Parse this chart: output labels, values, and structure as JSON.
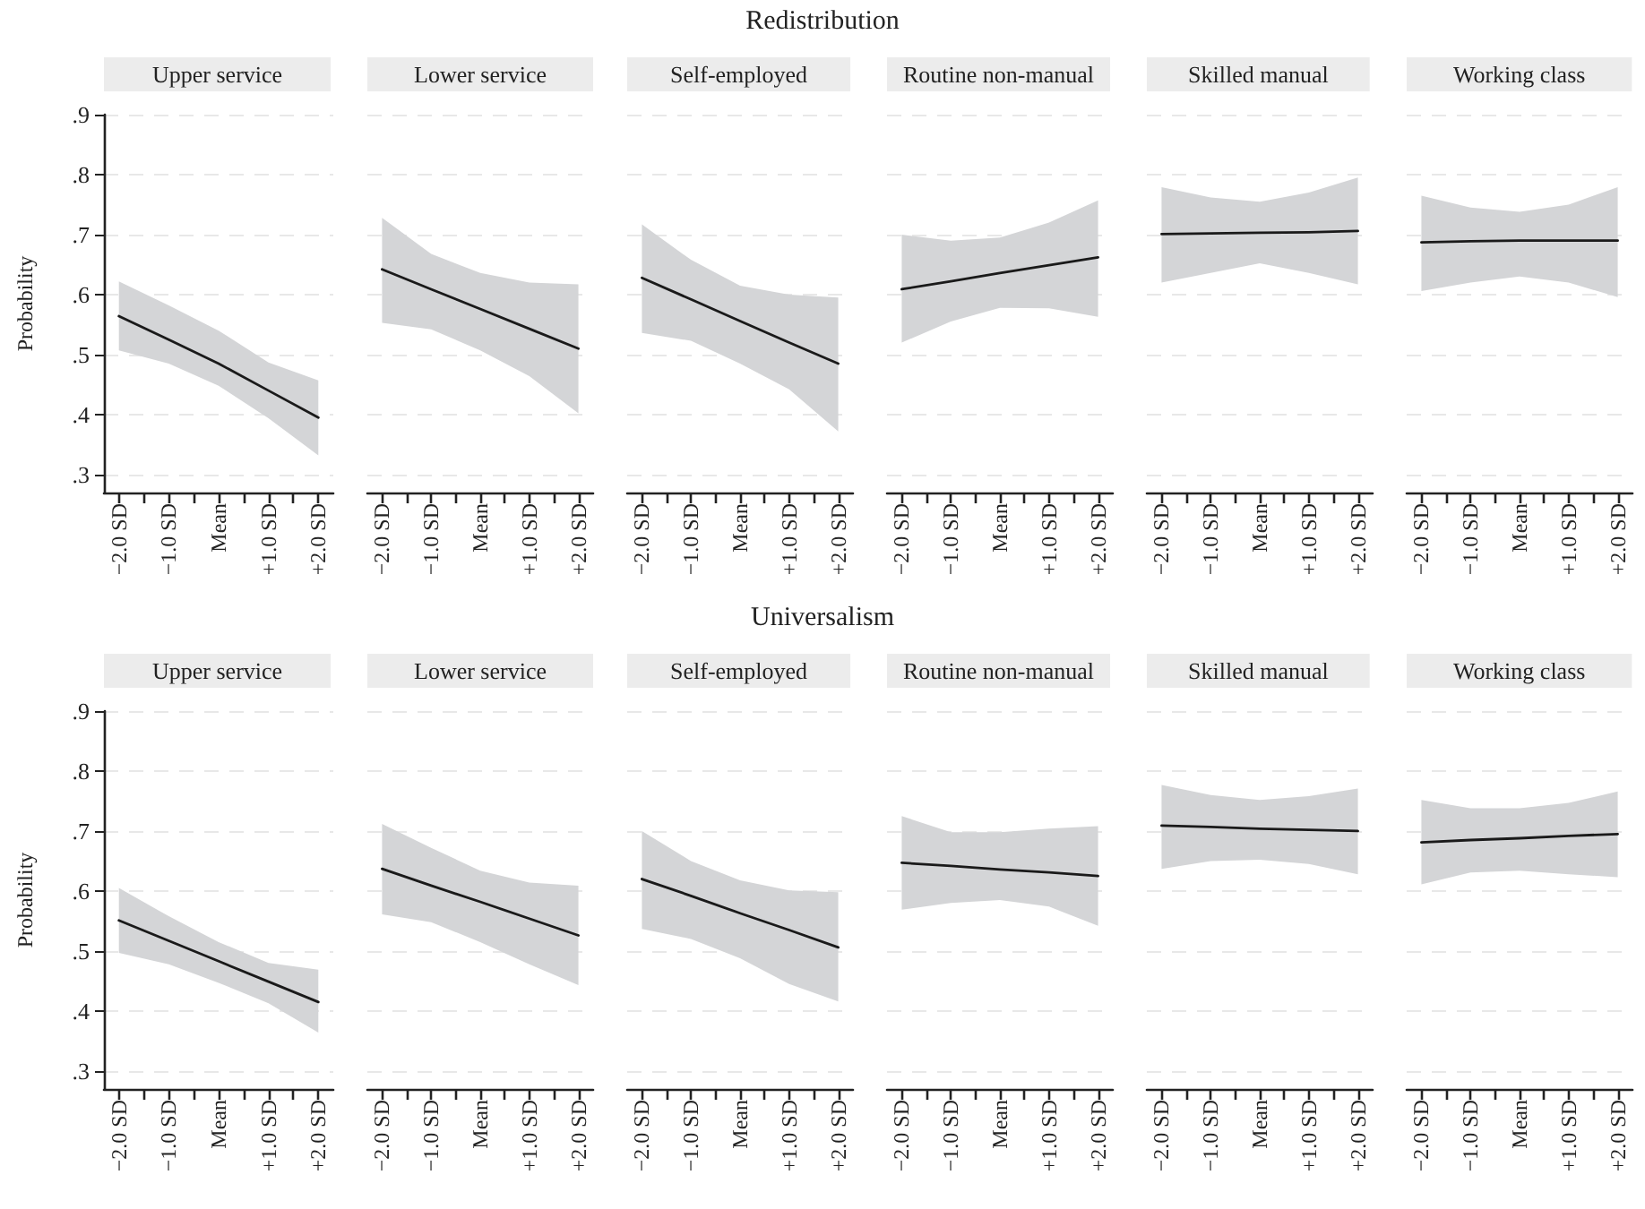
{
  "chart_data": [
    {
      "type": "other",
      "title": "Redistribution"
    },
    {
      "type": "line",
      "title": "Upper service",
      "ylabel": "Probability",
      "x": [
        -2,
        -1,
        0,
        1,
        2
      ],
      "xlim": [
        -2.3,
        2.3
      ],
      "xticks": [
        {
          "value": -2,
          "label": "−2.0 SD"
        },
        {
          "value": -1.5,
          "label": null
        },
        {
          "value": -1,
          "label": "−1.0 SD"
        },
        {
          "value": -0.5,
          "label": null
        },
        {
          "value": 0,
          "label": "Mean"
        },
        {
          "value": 0.5,
          "label": null
        },
        {
          "value": 1,
          "label": "+1.0 SD"
        },
        {
          "value": 1.5,
          "label": null
        },
        {
          "value": 2,
          "label": "+2.0 SD"
        }
      ],
      "ylim": [
        0.27,
        0.9
      ],
      "yticks": [
        {
          "value": 0.3,
          "label": ".3"
        },
        {
          "value": 0.4,
          "label": ".4"
        },
        {
          "value": 0.5,
          "label": ".5"
        },
        {
          "value": 0.6,
          "label": ".6"
        },
        {
          "value": 0.7,
          "label": ".7"
        },
        {
          "value": 0.8,
          "label": ".8"
        },
        {
          "value": 0.9,
          "label": ".9"
        }
      ],
      "grid": "y",
      "series": [
        {
          "color": "#1a1a1a",
          "values": [
            0.564,
            0.525,
            0.485,
            0.44,
            0.395
          ],
          "lower": [
            0.507,
            0.485,
            0.448,
            0.394,
            0.332
          ],
          "upper": [
            0.622,
            0.582,
            0.54,
            0.487,
            0.457
          ]
        }
      ]
    },
    {
      "type": "line",
      "title": "Lower service",
      "tick_labels": "x",
      "x": [
        -2,
        -1,
        0,
        1,
        2
      ],
      "xlim": [
        -2.3,
        2.3
      ],
      "xticks": [
        {
          "value": -2,
          "label": "−2.0 SD"
        },
        {
          "value": -1.5,
          "label": null
        },
        {
          "value": -1,
          "label": "−1.0 SD"
        },
        {
          "value": -0.5,
          "label": null
        },
        {
          "value": 0,
          "label": "Mean"
        },
        {
          "value": 0.5,
          "label": null
        },
        {
          "value": 1,
          "label": "+1.0 SD"
        },
        {
          "value": 1.5,
          "label": null
        },
        {
          "value": 2,
          "label": "+2.0 SD"
        }
      ],
      "ylim": [
        0.27,
        0.9
      ],
      "yticks": [
        0.3,
        0.4,
        0.5,
        0.6,
        0.7,
        0.8,
        0.9
      ],
      "grid": "y",
      "series": [
        {
          "color": "#1a1a1a",
          "values": [
            0.642,
            0.609,
            0.576,
            0.543,
            0.51
          ],
          "lower": [
            0.553,
            0.542,
            0.507,
            0.464,
            0.402
          ],
          "upper": [
            0.728,
            0.668,
            0.636,
            0.62,
            0.617
          ]
        }
      ]
    },
    {
      "type": "line",
      "title": "Self-employed",
      "tick_labels": "x",
      "x": [
        -2,
        -1,
        0,
        1,
        2
      ],
      "xlim": [
        -2.3,
        2.3
      ],
      "xticks": [
        {
          "value": -2,
          "label": "−2.0 SD"
        },
        {
          "value": -1.5,
          "label": null
        },
        {
          "value": -1,
          "label": "−1.0 SD"
        },
        {
          "value": -0.5,
          "label": null
        },
        {
          "value": 0,
          "label": "Mean"
        },
        {
          "value": 0.5,
          "label": null
        },
        {
          "value": 1,
          "label": "+1.0 SD"
        },
        {
          "value": 1.5,
          "label": null
        },
        {
          "value": 2,
          "label": "+2.0 SD"
        }
      ],
      "ylim": [
        0.27,
        0.9
      ],
      "yticks": [
        0.3,
        0.4,
        0.5,
        0.6,
        0.7,
        0.8,
        0.9
      ],
      "grid": "y",
      "series": [
        {
          "color": "#1a1a1a",
          "values": [
            0.628,
            0.592,
            0.556,
            0.52,
            0.485
          ],
          "lower": [
            0.536,
            0.523,
            0.485,
            0.442,
            0.372
          ],
          "upper": [
            0.717,
            0.658,
            0.615,
            0.6,
            0.595
          ]
        }
      ]
    },
    {
      "type": "line",
      "title": "Routine non-manual",
      "tick_labels": "x",
      "x": [
        -2,
        -1,
        0,
        1,
        2
      ],
      "xlim": [
        -2.3,
        2.3
      ],
      "xticks": [
        {
          "value": -2,
          "label": "−2.0 SD"
        },
        {
          "value": -1.5,
          "label": null
        },
        {
          "value": -1,
          "label": "−1.0 SD"
        },
        {
          "value": -0.5,
          "label": null
        },
        {
          "value": 0,
          "label": "Mean"
        },
        {
          "value": 0.5,
          "label": null
        },
        {
          "value": 1,
          "label": "+1.0 SD"
        },
        {
          "value": 1.5,
          "label": null
        },
        {
          "value": 2,
          "label": "+2.0 SD"
        }
      ],
      "ylim": [
        0.27,
        0.9
      ],
      "yticks": [
        0.3,
        0.4,
        0.5,
        0.6,
        0.7,
        0.8,
        0.9
      ],
      "grid": "y",
      "series": [
        {
          "color": "#1a1a1a",
          "values": [
            0.609,
            0.622,
            0.636,
            0.649,
            0.662
          ],
          "lower": [
            0.52,
            0.555,
            0.578,
            0.577,
            0.563
          ],
          "upper": [
            0.7,
            0.69,
            0.695,
            0.72,
            0.757
          ]
        }
      ]
    },
    {
      "type": "line",
      "title": "Skilled manual",
      "tick_labels": "x",
      "x": [
        -2,
        -1,
        0,
        1,
        2
      ],
      "xlim": [
        -2.3,
        2.3
      ],
      "xticks": [
        {
          "value": -2,
          "label": "−2.0 SD"
        },
        {
          "value": -1.5,
          "label": null
        },
        {
          "value": -1,
          "label": "−1.0 SD"
        },
        {
          "value": -0.5,
          "label": null
        },
        {
          "value": 0,
          "label": "Mean"
        },
        {
          "value": 0.5,
          "label": null
        },
        {
          "value": 1,
          "label": "+1.0 SD"
        },
        {
          "value": 1.5,
          "label": null
        },
        {
          "value": 2,
          "label": "+2.0 SD"
        }
      ],
      "ylim": [
        0.27,
        0.9
      ],
      "yticks": [
        0.3,
        0.4,
        0.5,
        0.6,
        0.7,
        0.8,
        0.9
      ],
      "grid": "y",
      "series": [
        {
          "color": "#1a1a1a",
          "values": [
            0.701,
            0.702,
            0.703,
            0.704,
            0.706
          ],
          "lower": [
            0.62,
            0.636,
            0.652,
            0.636,
            0.617
          ],
          "upper": [
            0.779,
            0.762,
            0.755,
            0.77,
            0.795
          ]
        }
      ]
    },
    {
      "type": "line",
      "title": "Working class",
      "tick_labels": "x",
      "x": [
        -2,
        -1,
        0,
        1,
        2
      ],
      "xlim": [
        -2.3,
        2.3
      ],
      "xticks": [
        {
          "value": -2,
          "label": "−2.0 SD"
        },
        {
          "value": -1.5,
          "label": null
        },
        {
          "value": -1,
          "label": "−1.0 SD"
        },
        {
          "value": -0.5,
          "label": null
        },
        {
          "value": 0,
          "label": "Mean"
        },
        {
          "value": 0.5,
          "label": null
        },
        {
          "value": 1,
          "label": "+1.0 SD"
        },
        {
          "value": 1.5,
          "label": null
        },
        {
          "value": 2,
          "label": "+2.0 SD"
        }
      ],
      "ylim": [
        0.27,
        0.9
      ],
      "yticks": [
        0.3,
        0.4,
        0.5,
        0.6,
        0.7,
        0.8,
        0.9
      ],
      "grid": "y",
      "series": [
        {
          "color": "#1a1a1a",
          "values": [
            0.687,
            0.689,
            0.69,
            0.69,
            0.69
          ],
          "lower": [
            0.606,
            0.62,
            0.63,
            0.62,
            0.596
          ],
          "upper": [
            0.765,
            0.745,
            0.738,
            0.75,
            0.779
          ]
        }
      ]
    },
    {
      "type": "other",
      "title": "Universalism"
    },
    {
      "type": "line",
      "title": "Upper service",
      "ylabel": "Probability",
      "x": [
        -2,
        -1,
        0,
        1,
        2
      ],
      "xlim": [
        -2.3,
        2.3
      ],
      "xticks": [
        {
          "value": -2,
          "label": "−2.0 SD"
        },
        {
          "value": -1.5,
          "label": null
        },
        {
          "value": -1,
          "label": "−1.0 SD"
        },
        {
          "value": -0.5,
          "label": null
        },
        {
          "value": 0,
          "label": "Mean"
        },
        {
          "value": 0.5,
          "label": null
        },
        {
          "value": 1,
          "label": "+1.0 SD"
        },
        {
          "value": 1.5,
          "label": null
        },
        {
          "value": 2,
          "label": "+2.0 SD"
        }
      ],
      "ylim": [
        0.27,
        0.9
      ],
      "yticks": [
        {
          "value": 0.3,
          "label": ".3"
        },
        {
          "value": 0.4,
          "label": ".4"
        },
        {
          "value": 0.5,
          "label": ".5"
        },
        {
          "value": 0.6,
          "label": ".6"
        },
        {
          "value": 0.7,
          "label": ".7"
        },
        {
          "value": 0.8,
          "label": ".8"
        },
        {
          "value": 0.9,
          "label": ".9"
        }
      ],
      "grid": "y",
      "series": [
        {
          "color": "#1a1a1a",
          "values": [
            0.551,
            0.517,
            0.483,
            0.449,
            0.415
          ],
          "lower": [
            0.497,
            0.478,
            0.447,
            0.413,
            0.364
          ],
          "upper": [
            0.605,
            0.558,
            0.515,
            0.48,
            0.469
          ]
        }
      ]
    },
    {
      "type": "line",
      "title": "Lower service",
      "tick_labels": "x",
      "x": [
        -2,
        -1,
        0,
        1,
        2
      ],
      "xlim": [
        -2.3,
        2.3
      ],
      "xticks": [
        {
          "value": -2,
          "label": "−2.0 SD"
        },
        {
          "value": -1.5,
          "label": null
        },
        {
          "value": -1,
          "label": "−1.0 SD"
        },
        {
          "value": -0.5,
          "label": null
        },
        {
          "value": 0,
          "label": "Mean"
        },
        {
          "value": 0.5,
          "label": null
        },
        {
          "value": 1,
          "label": "+1.0 SD"
        },
        {
          "value": 1.5,
          "label": null
        },
        {
          "value": 2,
          "label": "+2.0 SD"
        }
      ],
      "ylim": [
        0.27,
        0.9
      ],
      "yticks": [
        0.3,
        0.4,
        0.5,
        0.6,
        0.7,
        0.8,
        0.9
      ],
      "grid": "y",
      "series": [
        {
          "color": "#1a1a1a",
          "values": [
            0.637,
            0.609,
            0.582,
            0.554,
            0.526
          ],
          "lower": [
            0.561,
            0.548,
            0.515,
            0.478,
            0.443
          ],
          "upper": [
            0.712,
            0.672,
            0.634,
            0.614,
            0.609
          ]
        }
      ]
    },
    {
      "type": "line",
      "title": "Self-employed",
      "tick_labels": "x",
      "x": [
        -2,
        -1,
        0,
        1,
        2
      ],
      "xlim": [
        -2.3,
        2.3
      ],
      "xticks": [
        {
          "value": -2,
          "label": "−2.0 SD"
        },
        {
          "value": -1.5,
          "label": null
        },
        {
          "value": -1,
          "label": "−1.0 SD"
        },
        {
          "value": -0.5,
          "label": null
        },
        {
          "value": 0,
          "label": "Mean"
        },
        {
          "value": 0.5,
          "label": null
        },
        {
          "value": 1,
          "label": "+1.0 SD"
        },
        {
          "value": 1.5,
          "label": null
        },
        {
          "value": 2,
          "label": "+2.0 SD"
        }
      ],
      "ylim": [
        0.27,
        0.9
      ],
      "yticks": [
        0.3,
        0.4,
        0.5,
        0.6,
        0.7,
        0.8,
        0.9
      ],
      "grid": "y",
      "series": [
        {
          "color": "#1a1a1a",
          "values": [
            0.62,
            0.592,
            0.563,
            0.535,
            0.506
          ],
          "lower": [
            0.537,
            0.52,
            0.488,
            0.445,
            0.416
          ],
          "upper": [
            0.7,
            0.65,
            0.618,
            0.601,
            0.598
          ]
        }
      ]
    },
    {
      "type": "line",
      "title": "Routine non-manual",
      "tick_labels": "x",
      "x": [
        -2,
        -1,
        0,
        1,
        2
      ],
      "xlim": [
        -2.3,
        2.3
      ],
      "xticks": [
        {
          "value": -2,
          "label": "−2.0 SD"
        },
        {
          "value": -1.5,
          "label": null
        },
        {
          "value": -1,
          "label": "−1.0 SD"
        },
        {
          "value": -0.5,
          "label": null
        },
        {
          "value": 0,
          "label": "Mean"
        },
        {
          "value": 0.5,
          "label": null
        },
        {
          "value": 1,
          "label": "+1.0 SD"
        },
        {
          "value": 1.5,
          "label": null
        },
        {
          "value": 2,
          "label": "+2.0 SD"
        }
      ],
      "ylim": [
        0.27,
        0.9
      ],
      "yticks": [
        0.3,
        0.4,
        0.5,
        0.6,
        0.7,
        0.8,
        0.9
      ],
      "grid": "y",
      "series": [
        {
          "color": "#1a1a1a",
          "values": [
            0.647,
            0.642,
            0.636,
            0.631,
            0.625
          ],
          "lower": [
            0.569,
            0.58,
            0.585,
            0.574,
            0.542
          ],
          "upper": [
            0.725,
            0.698,
            0.698,
            0.704,
            0.708
          ]
        }
      ]
    },
    {
      "type": "line",
      "title": "Skilled manual",
      "tick_labels": "x",
      "x": [
        -2,
        -1,
        0,
        1,
        2
      ],
      "xlim": [
        -2.3,
        2.3
      ],
      "xticks": [
        {
          "value": -2,
          "label": "−2.0 SD"
        },
        {
          "value": -1.5,
          "label": null
        },
        {
          "value": -1,
          "label": "−1.0 SD"
        },
        {
          "value": -0.5,
          "label": null
        },
        {
          "value": 0,
          "label": "Mean"
        },
        {
          "value": 0.5,
          "label": null
        },
        {
          "value": 1,
          "label": "+1.0 SD"
        },
        {
          "value": 1.5,
          "label": null
        },
        {
          "value": 2,
          "label": "+2.0 SD"
        }
      ],
      "ylim": [
        0.27,
        0.9
      ],
      "yticks": [
        0.3,
        0.4,
        0.5,
        0.6,
        0.7,
        0.8,
        0.9
      ],
      "grid": "y",
      "series": [
        {
          "color": "#1a1a1a",
          "values": [
            0.709,
            0.707,
            0.704,
            0.702,
            0.7
          ],
          "lower": [
            0.637,
            0.65,
            0.652,
            0.645,
            0.628
          ],
          "upper": [
            0.777,
            0.76,
            0.752,
            0.758,
            0.771
          ]
        }
      ]
    },
    {
      "type": "line",
      "title": "Working class",
      "tick_labels": "x",
      "x": [
        -2,
        -1,
        0,
        1,
        2
      ],
      "xlim": [
        -2.3,
        2.3
      ],
      "xticks": [
        {
          "value": -2,
          "label": "−2.0 SD"
        },
        {
          "value": -1.5,
          "label": null
        },
        {
          "value": -1,
          "label": "−1.0 SD"
        },
        {
          "value": -0.5,
          "label": null
        },
        {
          "value": 0,
          "label": "Mean"
        },
        {
          "value": 0.5,
          "label": null
        },
        {
          "value": 1,
          "label": "+1.0 SD"
        },
        {
          "value": 1.5,
          "label": null
        },
        {
          "value": 2,
          "label": "+2.0 SD"
        }
      ],
      "ylim": [
        0.27,
        0.9
      ],
      "yticks": [
        0.3,
        0.4,
        0.5,
        0.6,
        0.7,
        0.8,
        0.9
      ],
      "grid": "y",
      "series": [
        {
          "color": "#1a1a1a",
          "values": [
            0.681,
            0.685,
            0.688,
            0.692,
            0.695
          ],
          "lower": [
            0.611,
            0.631,
            0.634,
            0.628,
            0.623
          ],
          "upper": [
            0.752,
            0.738,
            0.738,
            0.747,
            0.766
          ]
        }
      ]
    }
  ]
}
